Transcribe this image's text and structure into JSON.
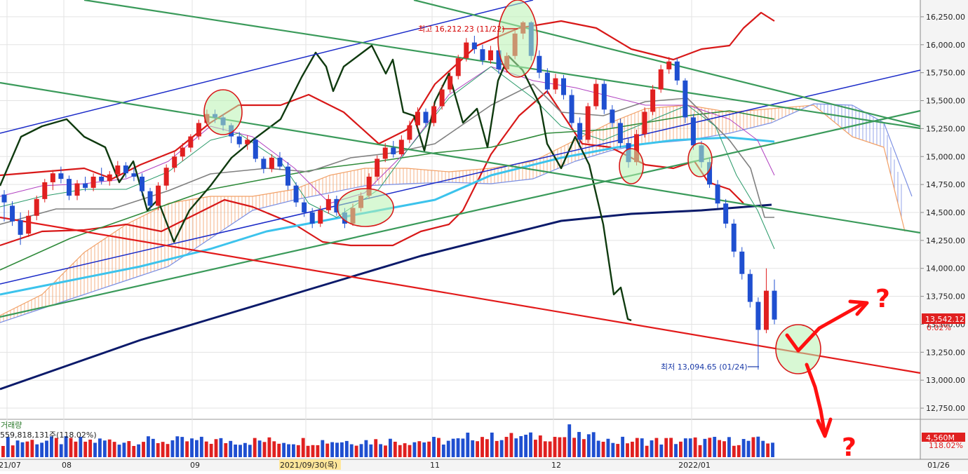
{
  "chart_data": {
    "type": "candlestick",
    "y_axis": {
      "ticks": [
        "16,250.00",
        "16,000.00",
        "15,750.00",
        "15,500.00",
        "15,250.00",
        "15,000.00",
        "14,750.00",
        "14,500.00",
        "14,250.00",
        "14,000.00",
        "13,750.00",
        "13,500.00",
        "13,250.00",
        "13,000.00",
        "12,750.00"
      ],
      "range": [
        12650,
        16400
      ]
    },
    "x_axis": {
      "ticks": [
        "21/07",
        "08",
        "09",
        "2021/09/30(목)",
        "11",
        "12",
        "2022/01",
        "01/26"
      ]
    },
    "last_price": "13,542.12",
    "last_change": "0.02%",
    "high_annotation": "최고 16,212.23 (11/22)",
    "low_annotation": "최저 13,094.65 (01/24)",
    "volume": {
      "title": "거래량",
      "summary": "559,818,131주(118.02%)",
      "last_value": "4,560M",
      "last_pct": "118.02%"
    },
    "question_marks": [
      "?",
      "?"
    ],
    "candles_approx": [
      [
        14660,
        14590,
        14700,
        14420
      ],
      [
        14560,
        14420,
        14600,
        14380
      ],
      [
        14430,
        14300,
        14500,
        14210
      ],
      [
        14310,
        14470,
        14520,
        14280
      ],
      [
        14470,
        14620,
        14650,
        14430
      ],
      [
        14620,
        14770,
        14800,
        14590
      ],
      [
        14770,
        14850,
        14880,
        14700
      ],
      [
        14850,
        14800,
        14910,
        14760
      ],
      [
        14800,
        14650,
        14830,
        14610
      ],
      [
        14650,
        14760,
        14790,
        14610
      ],
      [
        14760,
        14720,
        14820,
        14690
      ],
      [
        14720,
        14820,
        14850,
        14690
      ],
      [
        14820,
        14780,
        14900,
        14750
      ],
      [
        14780,
        14840,
        14870,
        14740
      ],
      [
        14840,
        14920,
        14960,
        14800
      ],
      [
        14920,
        14850,
        14950,
        14810
      ],
      [
        14850,
        14820,
        14900,
        14780
      ],
      [
        14820,
        14690,
        14850,
        14650
      ],
      [
        14690,
        14560,
        14720,
        14520
      ],
      [
        14560,
        14740,
        14770,
        14520
      ],
      [
        14740,
        14900,
        14930,
        14700
      ],
      [
        14900,
        15000,
        15050,
        14860
      ],
      [
        15000,
        15080,
        15120,
        14960
      ],
      [
        15080,
        15180,
        15200,
        15040
      ],
      [
        15180,
        15300,
        15330,
        15150
      ],
      [
        15300,
        15380,
        15420,
        15270
      ],
      [
        15380,
        15350,
        15420,
        15300
      ],
      [
        15350,
        15280,
        15380,
        15230
      ],
      [
        15280,
        15180,
        15300,
        15120
      ],
      [
        15180,
        15110,
        15220,
        15080
      ],
      [
        15110,
        15150,
        15190,
        15060
      ],
      [
        15150,
        14980,
        15170,
        14950
      ],
      [
        14980,
        14890,
        15000,
        14850
      ],
      [
        14890,
        14990,
        15020,
        14860
      ],
      [
        14990,
        14910,
        15040,
        14880
      ],
      [
        14910,
        14740,
        14950,
        14700
      ],
      [
        14740,
        14590,
        14770,
        14550
      ],
      [
        14590,
        14500,
        14620,
        14460
      ],
      [
        14500,
        14400,
        14540,
        14360
      ],
      [
        14400,
        14520,
        14560,
        14370
      ],
      [
        14520,
        14620,
        14660,
        14490
      ],
      [
        14620,
        14500,
        14650,
        14470
      ],
      [
        14500,
        14400,
        14540,
        14360
      ],
      [
        14400,
        14540,
        14580,
        14380
      ],
      [
        14540,
        14650,
        14680,
        14510
      ],
      [
        14650,
        14820,
        14850,
        14620
      ],
      [
        14820,
        14980,
        15010,
        14790
      ],
      [
        14980,
        15080,
        15120,
        14950
      ],
      [
        15080,
        15020,
        15140,
        14990
      ],
      [
        15020,
        15150,
        15190,
        15000
      ],
      [
        15150,
        15280,
        15320,
        15120
      ],
      [
        15280,
        15400,
        15440,
        15250
      ],
      [
        15400,
        15300,
        15430,
        15260
      ],
      [
        15300,
        15450,
        15480,
        15270
      ],
      [
        15450,
        15600,
        15640,
        15420
      ],
      [
        15600,
        15720,
        15760,
        15570
      ],
      [
        15720,
        15880,
        15910,
        15690
      ],
      [
        15880,
        16020,
        16060,
        15850
      ],
      [
        16020,
        15960,
        16080,
        15920
      ],
      [
        15960,
        15860,
        16000,
        15820
      ],
      [
        15860,
        15950,
        15990,
        15830
      ],
      [
        15950,
        15780,
        15980,
        15740
      ],
      [
        15780,
        15900,
        15930,
        15750
      ],
      [
        15900,
        16100,
        16140,
        15870
      ],
      [
        16100,
        16200,
        16212,
        16050
      ],
      [
        16200,
        15900,
        16210,
        15860
      ],
      [
        15900,
        15750,
        15950,
        15700
      ],
      [
        15750,
        15600,
        15790,
        15560
      ],
      [
        15600,
        15700,
        15740,
        15560
      ],
      [
        15700,
        15550,
        15730,
        15510
      ],
      [
        15550,
        15300,
        15600,
        15260
      ],
      [
        15300,
        15150,
        15350,
        15100
      ],
      [
        15150,
        15450,
        15480,
        15120
      ],
      [
        15450,
        15650,
        15690,
        15420
      ],
      [
        15650,
        15420,
        15680,
        15380
      ],
      [
        15420,
        15300,
        15460,
        15260
      ],
      [
        15300,
        15120,
        15340,
        15080
      ],
      [
        15120,
        14950,
        15160,
        14900
      ],
      [
        14950,
        15200,
        15240,
        14920
      ],
      [
        15200,
        15400,
        15440,
        15170
      ],
      [
        15400,
        15600,
        15640,
        15370
      ],
      [
        15600,
        15780,
        15820,
        15570
      ],
      [
        15780,
        15850,
        15890,
        15740
      ],
      [
        15850,
        15680,
        15880,
        15640
      ],
      [
        15680,
        15350,
        15700,
        15300
      ],
      [
        15350,
        15100,
        15380,
        15060
      ],
      [
        15100,
        14950,
        15140,
        14900
      ],
      [
        14950,
        14750,
        14990,
        14720
      ],
      [
        14750,
        14580,
        14790,
        14540
      ],
      [
        14580,
        14400,
        14620,
        14360
      ],
      [
        14400,
        14150,
        14440,
        14100
      ],
      [
        14150,
        13950,
        14190,
        13900
      ],
      [
        13950,
        13700,
        13990,
        13650
      ],
      [
        13700,
        13450,
        13740,
        13094
      ],
      [
        13450,
        13800,
        14000,
        13420
      ],
      [
        13800,
        13542,
        13900,
        13500
      ]
    ]
  }
}
